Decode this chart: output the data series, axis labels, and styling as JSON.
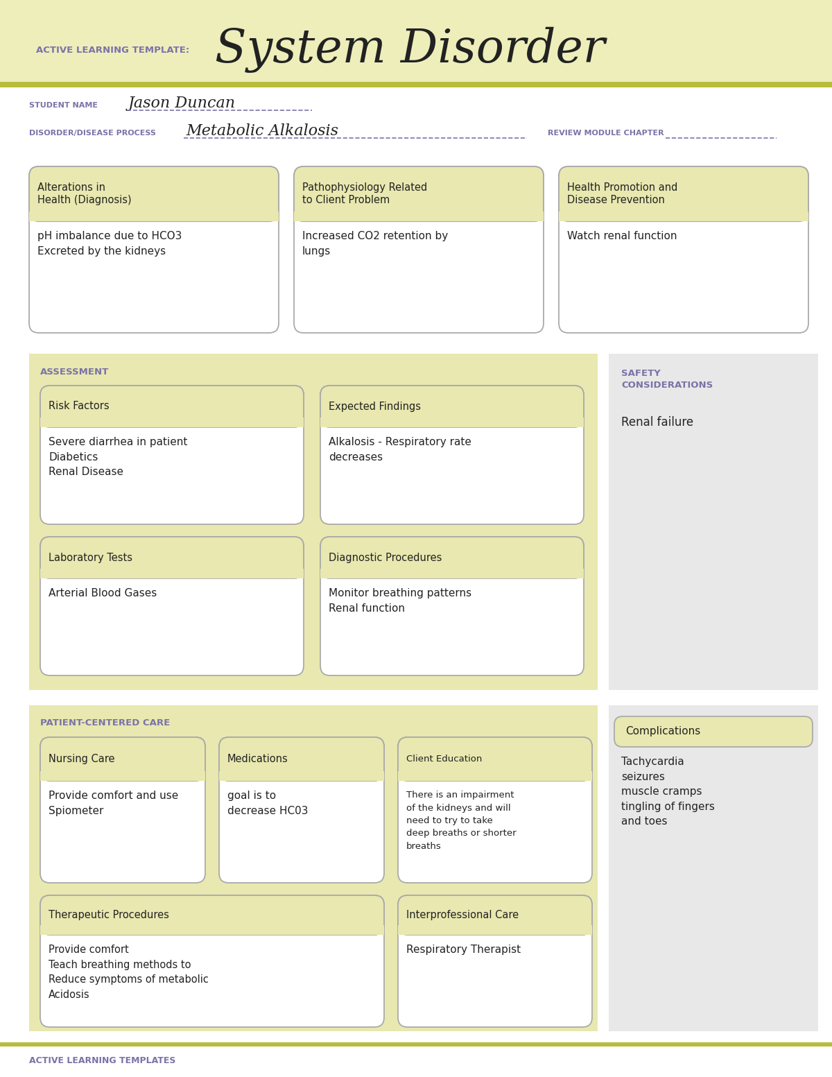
{
  "white": "#ffffff",
  "header_bg": "#eeeebb",
  "card_header_bg": "#e8e8b0",
  "light_gray": "#e8e8e8",
  "olive_line": "#b8bc3c",
  "purple_text": "#7b72a8",
  "dark_text": "#222222",
  "box_border": "#aaaaaa",
  "title_label": "ACTIVE LEARNING TEMPLATE:",
  "title_main": "System Disorder",
  "student_label": "STUDENT NAME",
  "student_name": "Jason Duncan",
  "disorder_label": "DISORDER/DISEASE PROCESS",
  "disorder_name": "Metabolic Alkalosis",
  "review_label": "REVIEW MODULE CHAPTER",
  "box1_title": "Alterations in\nHealth (Diagnosis)",
  "box1_body": "pH imbalance due to HCO3\nExcreted by the kidneys",
  "box2_title": "Pathophysiology Related\nto Client Problem",
  "box2_body": "Increased CO2 retention by\nlungs",
  "box3_title": "Health Promotion and\nDisease Prevention",
  "box3_body": "Watch renal function",
  "assess_label": "ASSESSMENT",
  "safety_label": "SAFETY\nCONSIDERATIONS",
  "safety_body": "Renal failure",
  "rf_title": "Risk Factors",
  "rf_body": "Severe diarrhea in patient\nDiabetics\nRenal Disease",
  "ef_title": "Expected Findings",
  "ef_body": "Alkalosis - Respiratory rate\ndecreases",
  "lt_title": "Laboratory Tests",
  "lt_body": "Arterial Blood Gases",
  "dp_title": "Diagnostic Procedures",
  "dp_body": "Monitor breathing patterns\nRenal function",
  "pcc_label": "PATIENT-CENTERED CARE",
  "comp_title": "Complications",
  "comp_body": "Tachycardia\nseizures\nmuscle cramps\ntingling of fingers\nand toes",
  "nc_title": "Nursing Care",
  "nc_body": "Provide comfort and use\nSpiometer",
  "med_title": "Medications",
  "med_body": "goal is to\ndecrease HC03",
  "ce_title": "Client Education",
  "ce_body": "There is an impairment\nof the kidneys and will\nneed to try to take\ndeep breaths or shorter\nbreaths",
  "tp_title": "Therapeutic Procedures",
  "tp_body": "Provide comfort\nTeach breathing methods to\nReduce symptoms of metabolic\nAcidosis",
  "ic_title": "Interprofessional Care",
  "ic_body": "Respiratory Therapist",
  "footer": "ACTIVE LEARNING TEMPLATES"
}
